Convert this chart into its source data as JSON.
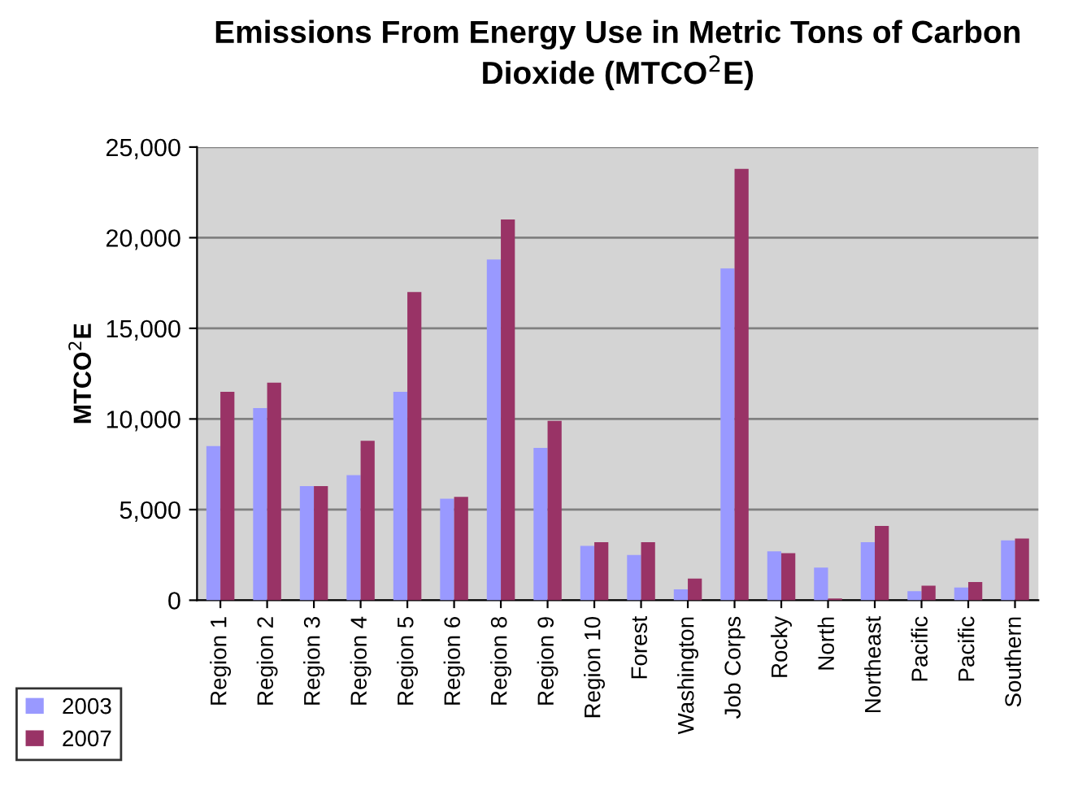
{
  "chart_data": {
    "type": "bar",
    "title": "Emissions From Energy Use in Metric Tons of Carbon Dioxide (MTCO$^{2}$E)",
    "ylabel": "MTCO$^{2}$E",
    "categories": [
      "Region 1",
      "Region 2",
      "Region 3",
      "Region 4",
      "Region 5",
      "Region 6",
      "Region 8",
      "Region 9",
      "Region 10",
      "Forest",
      "Washington",
      "Job Corps",
      "Rocky",
      "North",
      "Northeast",
      "Pacific",
      "Pacific",
      "Southern"
    ],
    "series": [
      {
        "name": "2003",
        "color": "#9999ff",
        "values": [
          8500,
          10600,
          6300,
          6900,
          11500,
          5600,
          18800,
          8400,
          3000,
          2500,
          600,
          18300,
          2700,
          1800,
          3200,
          500,
          700,
          3300
        ]
      },
      {
        "name": "2007",
        "color": "#993366",
        "values": [
          11500,
          12000,
          6300,
          8800,
          17000,
          5700,
          21000,
          9900,
          3200,
          3200,
          1200,
          23800,
          2600,
          100,
          4100,
          800,
          1000,
          3400
        ]
      }
    ],
    "ylim": [
      0,
      25000
    ],
    "yticks": [
      {
        "value": 0,
        "label": "0"
      },
      {
        "value": 5000,
        "label": "5,000"
      },
      {
        "value": 10000,
        "label": "10,000"
      },
      {
        "value": 15000,
        "label": "15,000"
      },
      {
        "value": 20000,
        "label": "20,000"
      },
      {
        "value": 25000,
        "label": "25,000"
      }
    ],
    "grid": "y",
    "legend": "bottom left"
  }
}
